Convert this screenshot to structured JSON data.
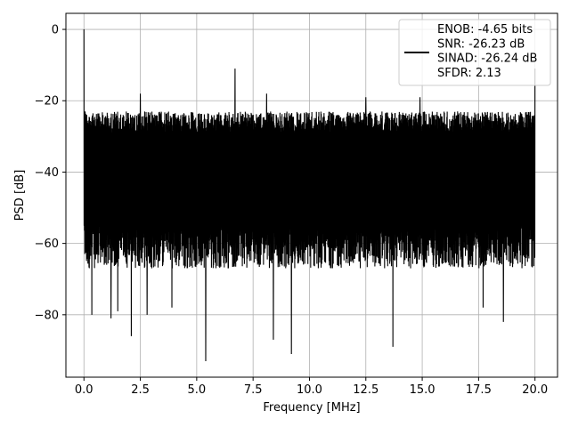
{
  "chart_data": {
    "type": "line",
    "title": "",
    "xlabel": "Frequency [MHz]",
    "ylabel": "PSD [dB]",
    "xlim": [
      -0.8,
      21.0
    ],
    "ylim": [
      -97.5,
      4.5
    ],
    "xticks": [
      0.0,
      2.5,
      5.0,
      7.5,
      10.0,
      12.5,
      15.0,
      17.5,
      20.0
    ],
    "xtick_labels": [
      "0.0",
      "2.5",
      "5.0",
      "7.5",
      "10.0",
      "12.5",
      "15.0",
      "17.5",
      "20.0"
    ],
    "yticks": [
      0,
      -20,
      -40,
      -60,
      -80
    ],
    "ytick_labels": [
      "0",
      "−20",
      "−40",
      "−60",
      "−80"
    ],
    "grid": true,
    "legend_position": "top-right",
    "series": [
      {
        "color": "#000000",
        "x_range": [
          0,
          20
        ],
        "noise_upper_envelope_db": -23,
        "noise_lower_envelope_db": -65,
        "fundamental": {
          "x": 0.0,
          "y": 0.0
        },
        "spurs": [
          {
            "x": 0.05,
            "y": -23
          },
          {
            "x": 2.5,
            "y": -18
          },
          {
            "x": 6.7,
            "y": -11
          },
          {
            "x": 8.1,
            "y": -18
          },
          {
            "x": 12.5,
            "y": -19
          },
          {
            "x": 14.9,
            "y": -19
          },
          {
            "x": 20.0,
            "y": -11
          }
        ],
        "dips": [
          {
            "x": 0.35,
            "y": -80
          },
          {
            "x": 1.2,
            "y": -81
          },
          {
            "x": 1.5,
            "y": -79
          },
          {
            "x": 2.1,
            "y": -86
          },
          {
            "x": 2.8,
            "y": -80
          },
          {
            "x": 3.9,
            "y": -78
          },
          {
            "x": 5.4,
            "y": -93
          },
          {
            "x": 8.4,
            "y": -87
          },
          {
            "x": 9.2,
            "y": -91
          },
          {
            "x": 13.7,
            "y": -89
          },
          {
            "x": 17.7,
            "y": -78
          },
          {
            "x": 18.6,
            "y": -82
          }
        ]
      }
    ],
    "legend": {
      "lines": [
        "ENOB: -4.65 bits",
        "SNR: -26.23 dB",
        "SINAD: -26.24 dB",
        "SFDR: 2.13"
      ]
    }
  }
}
